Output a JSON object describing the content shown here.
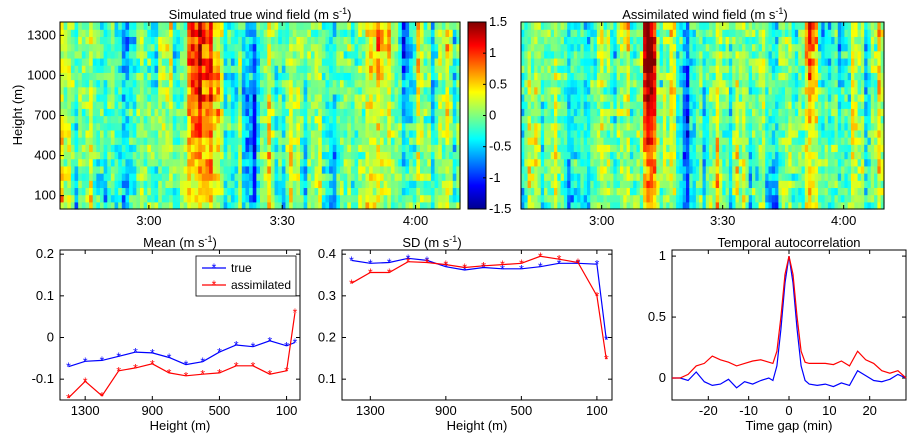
{
  "colors": {
    "true": "#0000ff",
    "assimilated": "#ff0000",
    "colormap": [
      "#00008f",
      "#0000ff",
      "#00ffff",
      "#ffff00",
      "#ff0000",
      "#800000"
    ]
  },
  "chart_data": [
    {
      "id": "true_field",
      "type": "heatmap",
      "title": "Simulated true wind field (m s",
      "title_sup": "-1",
      "title_end": ")",
      "ylabel": "Height (m)",
      "xlabel": "",
      "xticks": [
        "3:00",
        "3:30",
        "4:00"
      ],
      "xtick_minutes": [
        178,
        208,
        238
      ],
      "xlim_minutes": [
        158,
        248
      ],
      "yticks": [
        "100",
        "400",
        "700",
        "1000",
        "1300"
      ],
      "ytick_values": [
        100,
        400,
        700,
        1000,
        1300
      ],
      "ylim": [
        0,
        1400
      ],
      "zlim": [
        -1.5,
        1.5
      ],
      "colorbar_ticks": [
        "1.5",
        "1",
        "0.5",
        "0",
        "-0.5",
        "-1",
        "-1.5"
      ],
      "colorbar_values": [
        1.5,
        1,
        0.5,
        0,
        -0.5,
        -1,
        -1.5
      ],
      "streaks": [
        {
          "t": 172,
          "v": -0.9,
          "w": 3.5
        },
        {
          "t": 190,
          "v": 1.4,
          "w": 2.5
        },
        {
          "t": 200,
          "v": -0.7,
          "w": 2.5
        },
        {
          "t": 220,
          "v": -0.7,
          "w": 2.5
        },
        {
          "t": 230,
          "v": 1.1,
          "w": 2.0
        },
        {
          "t": 235,
          "v": -0.5,
          "w": 2.5
        }
      ]
    },
    {
      "id": "assim_field",
      "type": "heatmap",
      "title": "Assimilated wind field (m s",
      "title_sup": "-1",
      "title_end": ")",
      "xticks": [
        "3:00",
        "3:30",
        "4:00"
      ],
      "xtick_minutes": [
        178,
        208,
        238
      ],
      "xlim_minutes": [
        158,
        248
      ],
      "ylim": [
        0,
        1400
      ],
      "zlim": [
        -1.5,
        1.5
      ],
      "streaks": [
        {
          "t": 172,
          "v": -1.0,
          "w": 3.0
        },
        {
          "t": 190,
          "v": 1.3,
          "w": 2.0
        },
        {
          "t": 200,
          "v": -0.8,
          "w": 2.0
        },
        {
          "t": 220,
          "v": -0.8,
          "w": 2.0
        },
        {
          "t": 230,
          "v": 1.0,
          "w": 1.5
        },
        {
          "t": 235,
          "v": -0.6,
          "w": 2.0
        }
      ]
    },
    {
      "id": "mean",
      "type": "line",
      "title": "Mean (m s",
      "title_sup": "-1",
      "title_end": ")",
      "xlabel": "Height (m)",
      "x_reversed": true,
      "xlim": [
        1450,
        20
      ],
      "ylim": [
        -0.15,
        0.21
      ],
      "xticks": [
        "1300",
        "900",
        "500",
        "100"
      ],
      "xtick_values": [
        1300,
        900,
        500,
        100
      ],
      "yticks": [
        "0.2",
        "0.1",
        "0",
        "-0.1"
      ],
      "ytick_values": [
        0.2,
        0.1,
        0,
        -0.1
      ],
      "legend": "top-right",
      "series": [
        {
          "name": "true",
          "color": "#0000ff",
          "x": [
            1400,
            1300,
            1200,
            1100,
            1000,
            900,
            800,
            700,
            600,
            500,
            400,
            300,
            200,
            100,
            50
          ],
          "y": [
            -0.07,
            -0.057,
            -0.055,
            -0.045,
            -0.035,
            -0.037,
            -0.048,
            -0.065,
            -0.058,
            -0.035,
            -0.018,
            -0.022,
            -0.008,
            -0.02,
            -0.012
          ]
        },
        {
          "name": "assimilated",
          "color": "#ff0000",
          "x": [
            1400,
            1300,
            1200,
            1100,
            1000,
            900,
            800,
            700,
            600,
            500,
            400,
            300,
            200,
            100,
            50
          ],
          "y": [
            -0.145,
            -0.105,
            -0.14,
            -0.08,
            -0.073,
            -0.063,
            -0.085,
            -0.092,
            -0.088,
            -0.085,
            -0.068,
            -0.068,
            -0.088,
            -0.08,
            0.06
          ]
        }
      ]
    },
    {
      "id": "sd",
      "type": "line",
      "title": "SD (m s",
      "title_sup": "-1",
      "title_end": ")",
      "xlabel": "Height (m)",
      "x_reversed": true,
      "xlim": [
        1450,
        20
      ],
      "ylim": [
        0.05,
        0.41
      ],
      "xticks": [
        "1300",
        "900",
        "500",
        "100"
      ],
      "xtick_values": [
        1300,
        900,
        500,
        100
      ],
      "yticks": [
        "0.4",
        "0.3",
        "0.2",
        "0.1"
      ],
      "ytick_values": [
        0.4,
        0.3,
        0.2,
        0.1
      ],
      "series": [
        {
          "name": "true",
          "color": "#0000ff",
          "x": [
            1400,
            1300,
            1200,
            1100,
            1000,
            900,
            800,
            700,
            600,
            500,
            400,
            300,
            200,
            100,
            50
          ],
          "y": [
            0.385,
            0.378,
            0.38,
            0.39,
            0.385,
            0.37,
            0.362,
            0.368,
            0.365,
            0.365,
            0.37,
            0.378,
            0.378,
            0.376,
            0.195
          ]
        },
        {
          "name": "assimilated",
          "color": "#ff0000",
          "x": [
            1400,
            1300,
            1200,
            1100,
            1000,
            900,
            800,
            700,
            600,
            500,
            400,
            300,
            200,
            100,
            50
          ],
          "y": [
            0.33,
            0.356,
            0.356,
            0.382,
            0.38,
            0.375,
            0.368,
            0.372,
            0.375,
            0.378,
            0.395,
            0.388,
            0.38,
            0.3,
            0.148
          ]
        }
      ]
    },
    {
      "id": "autocorr",
      "type": "line",
      "title": "Temporal autocorrelation",
      "xlabel": "Time gap (min)",
      "xlim": [
        -29,
        29
      ],
      "ylim": [
        -0.18,
        1.05
      ],
      "xticks": [
        "-20",
        "-10",
        "0",
        "10",
        "20"
      ],
      "xtick_values": [
        -20,
        -10,
        0,
        10,
        20
      ],
      "yticks": [
        "1",
        "0.5",
        "0"
      ],
      "ytick_values": [
        1,
        0.5,
        0
      ],
      "series": [
        {
          "name": "true",
          "color": "#0000ff",
          "x": [
            -29,
            -27,
            -25,
            -23,
            -21,
            -19,
            -17,
            -15,
            -13,
            -11,
            -9,
            -7,
            -5,
            -4,
            -3,
            -2,
            -1,
            0,
            1,
            2,
            3,
            4,
            5,
            7,
            9,
            11,
            13,
            15,
            17,
            19,
            21,
            23,
            25,
            27,
            29
          ],
          "y": [
            0.0,
            0.0,
            -0.02,
            0.05,
            -0.03,
            -0.06,
            -0.05,
            -0.01,
            -0.08,
            -0.03,
            -0.05,
            -0.02,
            0.0,
            -0.02,
            0.1,
            0.4,
            0.78,
            1.0,
            0.78,
            0.4,
            0.1,
            -0.02,
            -0.05,
            -0.06,
            -0.05,
            -0.07,
            -0.04,
            -0.06,
            0.06,
            0.02,
            -0.02,
            -0.03,
            -0.01,
            0.03,
            0.0
          ]
        },
        {
          "name": "assimilated",
          "color": "#ff0000",
          "x": [
            -29,
            -27,
            -25,
            -23,
            -21,
            -19,
            -17,
            -15,
            -13,
            -11,
            -9,
            -7,
            -5,
            -4,
            -3,
            -2,
            -1,
            0,
            1,
            2,
            3,
            4,
            5,
            7,
            9,
            11,
            13,
            15,
            17,
            19,
            21,
            23,
            25,
            27,
            29
          ],
          "y": [
            0.0,
            0.0,
            0.03,
            0.1,
            0.12,
            0.18,
            0.15,
            0.13,
            0.1,
            0.12,
            0.14,
            0.15,
            0.13,
            0.12,
            0.22,
            0.5,
            0.85,
            1.0,
            0.85,
            0.5,
            0.22,
            0.13,
            0.12,
            0.12,
            0.12,
            0.11,
            0.14,
            0.1,
            0.22,
            0.15,
            0.12,
            0.06,
            0.04,
            0.06,
            0.0
          ]
        }
      ]
    }
  ]
}
